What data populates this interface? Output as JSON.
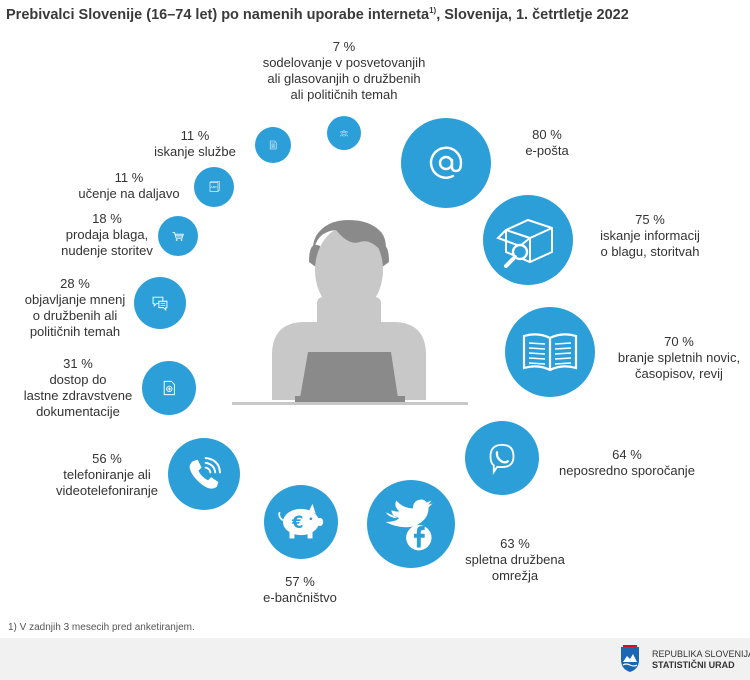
{
  "title_main": "Prebivalci Slovenije (16–74 let) po namenih uporabe interneta",
  "title_sup": "1)",
  "title_rest": ", Slovenija, 1. četrtletje 2022",
  "footnote": "1)   V zadnjih 3 mesecih pred anketiranjem.",
  "org_line1": "REPUBLIKA SLOVENIJA",
  "org_line2": "STATISTIČNI URAD",
  "colors": {
    "circle": "#2c9fd9",
    "person": "#c8c8c8",
    "person_dark": "#8a8a8a",
    "text": "#333333"
  },
  "chart_data": {
    "type": "bubble",
    "title": "Prebivalci Slovenije (16–74 let) po namenih uporabe interneta, Slovenija, 1. četrtletje 2022",
    "unit": "%",
    "items": [
      {
        "value": 80,
        "value_label": "80 %",
        "lines": [
          "e-pošta"
        ],
        "icon": "at-icon"
      },
      {
        "value": 75,
        "value_label": "75 %",
        "lines": [
          "iskanje informacij",
          "o blagu, storitvah"
        ],
        "icon": "box-search-icon"
      },
      {
        "value": 70,
        "value_label": "70 %",
        "lines": [
          "branje spletnih novic,",
          "časopisov, revij"
        ],
        "icon": "book-icon"
      },
      {
        "value": 64,
        "value_label": "64 %",
        "lines": [
          "neposredno sporočanje"
        ],
        "icon": "viber-icon"
      },
      {
        "value": 63,
        "value_label": "63 %",
        "lines": [
          "spletna družbena",
          "omrežja"
        ],
        "icon": "social-icon"
      },
      {
        "value": 57,
        "value_label": "57 %",
        "lines": [
          "e-bančništvo"
        ],
        "icon": "piggy-bank-icon"
      },
      {
        "value": 56,
        "value_label": "56 %",
        "lines": [
          "telefoniranje ali",
          "videotelefoniranje"
        ],
        "icon": "phone-icon"
      },
      {
        "value": 31,
        "value_label": "31 %",
        "lines": [
          "dostop do",
          "lastne zdravstvene",
          "dokumentacije"
        ],
        "icon": "health-doc-icon"
      },
      {
        "value": 28,
        "value_label": "28 %",
        "lines": [
          "objavljanje mnenj",
          "o družbenih ali",
          "političnih temah"
        ],
        "icon": "chat-icon"
      },
      {
        "value": 18,
        "value_label": "18 %",
        "lines": [
          "prodaja blaga,",
          "nudenje storitev"
        ],
        "icon": "cart-icon"
      },
      {
        "value": 11,
        "value_label": "11 %",
        "lines": [
          "učenje na daljavo"
        ],
        "icon": "abc-book-icon"
      },
      {
        "value": 11,
        "value_label": "11 %",
        "lines": [
          "iskanje službe"
        ],
        "icon": "document-icon"
      },
      {
        "value": 7,
        "value_label": "7 %",
        "lines": [
          "sodelovanje v posvetovanjih",
          "ali  glasovanjih o družbenih",
          "ali političnih temah"
        ],
        "icon": "group-icon"
      }
    ]
  }
}
